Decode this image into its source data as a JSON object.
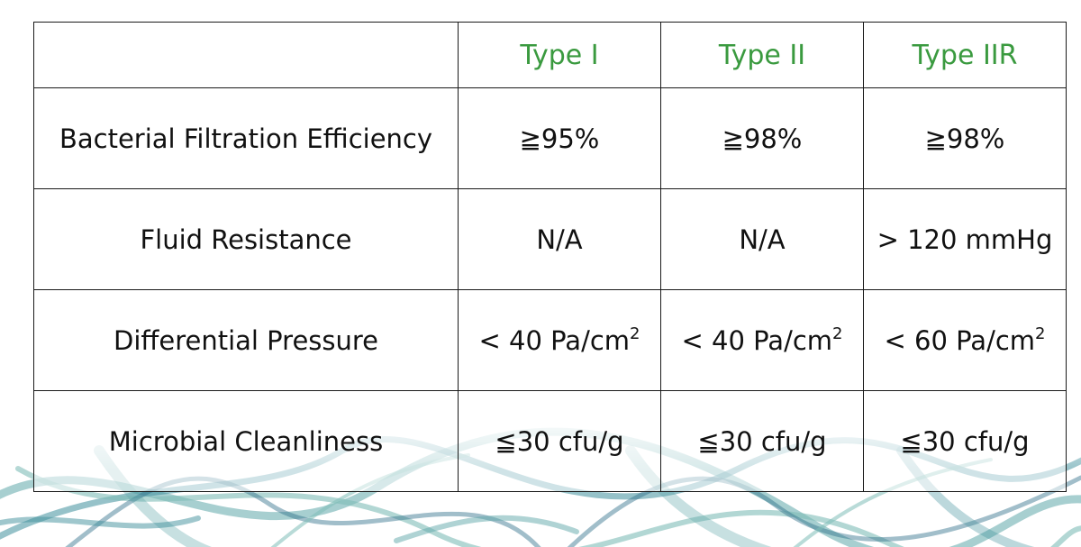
{
  "table": {
    "columns": [
      {
        "label": ""
      },
      {
        "label": "Type I"
      },
      {
        "label": "Type II"
      },
      {
        "label": "Type IIR"
      }
    ],
    "rows": [
      {
        "label": "Bacterial Filtration Efficiency",
        "values": [
          "≧95%",
          "≧98%",
          "≧98%"
        ]
      },
      {
        "label": "Fluid Resistance",
        "values": [
          "N/A",
          "N/A",
          "> 120 mmHg"
        ]
      },
      {
        "label": "Differential Pressure",
        "values": [
          "< 40 Pa/cm",
          "< 40 Pa/cm",
          "< 60 Pa/cm"
        ],
        "superscript": "2"
      },
      {
        "label": "Microbial Cleanliness",
        "values": [
          "≦30 cfu/g",
          "≦30 cfu/g",
          "≦30 cfu/g"
        ]
      }
    ]
  },
  "colors": {
    "header_text": "#3a9a3f",
    "body_text": "#111111",
    "border": "#1a1a1a",
    "fiber_strands": [
      "#5fa7a9",
      "#3f8f9c",
      "#7fbdb8",
      "#2f6f8a"
    ]
  },
  "decoration": {
    "name": "fiber-strands-background"
  }
}
